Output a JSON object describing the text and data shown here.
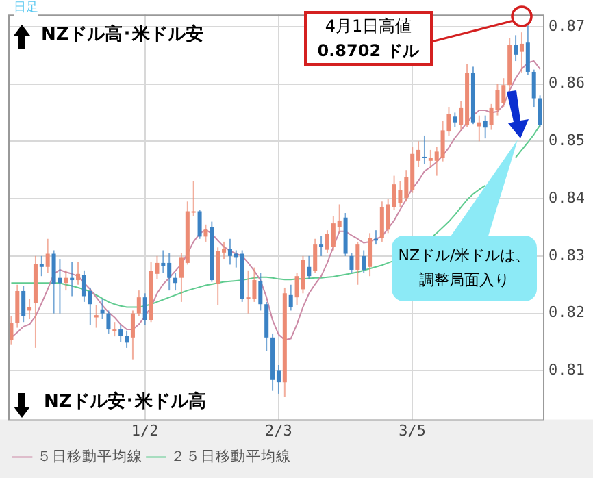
{
  "chart_data": {
    "type": "candlestick",
    "categories": [
      null,
      null,
      null,
      null,
      null,
      null,
      null,
      null,
      null,
      null,
      null,
      null,
      null,
      null,
      null,
      null,
      null,
      null,
      null,
      null,
      null,
      null,
      "1/2",
      null,
      null,
      null,
      null,
      null,
      null,
      null,
      null,
      null,
      null,
      null,
      null,
      null,
      null,
      null,
      null,
      null,
      null,
      null,
      null,
      null,
      "2/3",
      null,
      null,
      null,
      null,
      null,
      null,
      null,
      null,
      null,
      null,
      null,
      null,
      null,
      null,
      null,
      null,
      null,
      null,
      null,
      null,
      null,
      "3/5",
      null,
      null,
      null,
      null,
      null,
      null,
      null,
      null,
      null,
      null,
      null,
      null,
      null,
      null,
      null,
      null,
      null,
      null,
      null,
      null,
      null
    ],
    "ohlc": [
      [
        0.8154,
        0.8195,
        0.8145,
        0.8184
      ],
      [
        0.8184,
        0.825,
        0.8175,
        0.8239
      ],
      [
        0.8239,
        0.8248,
        0.8185,
        0.8195
      ],
      [
        0.8205,
        0.8225,
        0.819,
        0.8211
      ],
      [
        0.8218,
        0.83,
        0.814,
        0.8286
      ],
      [
        0.8286,
        0.83,
        0.8265,
        0.8281
      ],
      [
        0.8281,
        0.833,
        0.827,
        0.8304
      ],
      [
        0.8304,
        0.831,
        0.82,
        0.8251
      ],
      [
        0.8262,
        0.8295,
        0.82,
        0.8253
      ],
      [
        0.8253,
        0.8275,
        0.824,
        0.8262
      ],
      [
        0.8262,
        0.829,
        0.823,
        0.8258
      ],
      [
        0.8258,
        0.829,
        0.825,
        0.8269
      ],
      [
        0.8267,
        0.8275,
        0.822,
        0.823
      ],
      [
        0.8239,
        0.8245,
        0.818,
        0.8216
      ],
      [
        0.8193,
        0.8215,
        0.8175,
        0.8197
      ],
      [
        0.8207,
        0.8225,
        0.819,
        0.82
      ],
      [
        0.82,
        0.8205,
        0.8165,
        0.8172
      ],
      [
        0.817,
        0.8185,
        0.816,
        0.8172
      ],
      [
        0.8172,
        0.818,
        0.815,
        0.8161
      ],
      [
        0.8161,
        0.817,
        0.814,
        0.8149
      ],
      [
        0.8158,
        0.8205,
        0.812,
        0.82
      ],
      [
        0.82,
        0.824,
        0.8195,
        0.8228
      ],
      [
        0.8228,
        0.8235,
        0.818,
        0.8188
      ],
      [
        0.8188,
        0.829,
        0.8185,
        0.8274
      ],
      [
        0.8269,
        0.83,
        0.826,
        0.8288
      ],
      [
        0.8288,
        0.831,
        0.827,
        0.8283
      ],
      [
        0.8288,
        0.8305,
        0.824,
        0.8262
      ],
      [
        0.8262,
        0.827,
        0.824,
        0.8253
      ],
      [
        0.8262,
        0.8305,
        0.822,
        0.8297
      ],
      [
        0.8288,
        0.8395,
        0.8285,
        0.8378
      ],
      [
        0.8376,
        0.843,
        0.837,
        0.8378
      ],
      [
        0.8378,
        0.838,
        0.833,
        0.8334
      ],
      [
        0.8334,
        0.8355,
        0.8325,
        0.8346
      ],
      [
        0.835,
        0.836,
        0.8255,
        0.8258
      ],
      [
        0.8251,
        0.8315,
        0.8215,
        0.8309
      ],
      [
        0.8306,
        0.8325,
        0.8295,
        0.8313
      ],
      [
        0.8313,
        0.833,
        0.8285,
        0.83
      ],
      [
        0.8304,
        0.831,
        0.828,
        0.8297
      ],
      [
        0.8304,
        0.831,
        0.822,
        0.8225
      ],
      [
        0.8225,
        0.8275,
        0.82,
        0.8228
      ],
      [
        0.8225,
        0.828,
        0.822,
        0.8258
      ],
      [
        0.8256,
        0.827,
        0.8205,
        0.8216
      ],
      [
        0.8216,
        0.822,
        0.8135,
        0.8158
      ],
      [
        0.8158,
        0.8165,
        0.8065,
        0.8084
      ],
      [
        0.81,
        0.811,
        0.806,
        0.808
      ],
      [
        0.808,
        0.8245,
        0.8054,
        0.8235
      ],
      [
        0.8232,
        0.825,
        0.8205,
        0.8211
      ],
      [
        0.8228,
        0.827,
        0.8215,
        0.8265
      ],
      [
        0.8242,
        0.83,
        0.8235,
        0.8293
      ],
      [
        0.8281,
        0.83,
        0.826,
        0.8265
      ],
      [
        0.8274,
        0.833,
        0.827,
        0.832
      ],
      [
        0.832,
        0.8335,
        0.83,
        0.8316
      ],
      [
        0.8311,
        0.8345,
        0.8305,
        0.8339
      ],
      [
        0.8316,
        0.837,
        0.831,
        0.8357
      ],
      [
        0.835,
        0.839,
        0.834,
        0.8362
      ],
      [
        0.8367,
        0.8375,
        0.83,
        0.8304
      ],
      [
        0.83,
        0.8305,
        0.827,
        0.8276
      ],
      [
        0.8276,
        0.8325,
        0.825,
        0.832
      ],
      [
        0.83,
        0.831,
        0.827,
        0.8276
      ],
      [
        0.8281,
        0.834,
        0.8265,
        0.8332
      ],
      [
        0.833,
        0.8345,
        0.832,
        0.8327
      ],
      [
        0.8332,
        0.8395,
        0.8325,
        0.8385
      ],
      [
        0.8346,
        0.84,
        0.834,
        0.839
      ],
      [
        0.8385,
        0.844,
        0.838,
        0.8425
      ],
      [
        0.8392,
        0.843,
        0.8385,
        0.8415
      ],
      [
        0.8401,
        0.845,
        0.8395,
        0.8438
      ],
      [
        0.8415,
        0.849,
        0.841,
        0.8478
      ],
      [
        0.8466,
        0.85,
        0.8455,
        0.8485
      ],
      [
        0.8473,
        0.851,
        0.846,
        0.8471
      ],
      [
        0.8466,
        0.8485,
        0.8455,
        0.8471
      ],
      [
        0.8466,
        0.849,
        0.844,
        0.8482
      ],
      [
        0.8471,
        0.8535,
        0.8465,
        0.8519
      ],
      [
        0.8517,
        0.856,
        0.851,
        0.8547
      ],
      [
        0.8543,
        0.855,
        0.8525,
        0.8533
      ],
      [
        0.8529,
        0.857,
        0.852,
        0.8559
      ],
      [
        0.8529,
        0.8635,
        0.8525,
        0.8619
      ],
      [
        0.8619,
        0.863,
        0.853,
        0.8533
      ],
      [
        0.8526,
        0.8545,
        0.85,
        0.8533
      ],
      [
        0.8536,
        0.8545,
        0.8505,
        0.8524
      ],
      [
        0.8529,
        0.8565,
        0.852,
        0.8559
      ],
      [
        0.8554,
        0.86,
        0.8545,
        0.8589
      ],
      [
        0.8566,
        0.861,
        0.856,
        0.8598
      ],
      [
        0.8598,
        0.868,
        0.859,
        0.8668
      ],
      [
        0.8668,
        0.8685,
        0.864,
        0.8651
      ],
      [
        0.8656,
        0.869,
        0.862,
        0.867
      ],
      [
        0.8672,
        0.8702,
        0.8615,
        0.8621
      ],
      [
        0.8621,
        0.8625,
        0.856,
        0.8575
      ],
      [
        0.8575,
        0.858,
        0.8525,
        0.8529
      ]
    ],
    "colors": [
      "#ec8b74",
      "#ec8b74",
      "#3b82c4",
      "#ec8b74",
      "#ec8b74",
      "#3b82c4",
      "#ec8b74",
      "#3b82c4",
      "#3b82c4",
      "#ec8b74",
      "#3b82c4",
      "#ec8b74",
      "#3b82c4",
      "#3b82c4",
      "#ec8b74",
      "#3b82c4",
      "#3b82c4",
      "#ec8b74",
      "#3b82c4",
      "#3b82c4",
      "#ec8b74",
      "#ec8b74",
      "#3b82c4",
      "#ec8b74",
      "#ec8b74",
      "#3b82c4",
      "#3b82c4",
      "#3b82c4",
      "#ec8b74",
      "#ec8b74",
      "#ec8b74",
      "#3b82c4",
      "#ec8b74",
      "#3b82c4",
      "#ec8b74",
      "#ec8b74",
      "#3b82c4",
      "#3b82c4",
      "#3b82c4",
      "#ec8b74",
      "#ec8b74",
      "#3b82c4",
      "#3b82c4",
      "#3b82c4",
      "#3b82c4",
      "#ec8b74",
      "#3b82c4",
      "#ec8b74",
      "#ec8b74",
      "#3b82c4",
      "#ec8b74",
      "#3b82c4",
      "#ec8b74",
      "#ec8b74",
      "#ec8b74",
      "#3b82c4",
      "#3b82c4",
      "#ec8b74",
      "#3b82c4",
      "#ec8b74",
      "#3b82c4",
      "#ec8b74",
      "#ec8b74",
      "#ec8b74",
      "#ec8b74",
      "#ec8b74",
      "#ec8b74",
      "#ec8b74",
      "#3b82c4",
      "#ec8b74",
      "#ec8b74",
      "#ec8b74",
      "#ec8b74",
      "#3b82c4",
      "#ec8b74",
      "#ec8b74",
      "#3b82c4",
      "#ec8b74",
      "#3b82c4",
      "#ec8b74",
      "#ec8b74",
      "#ec8b74",
      "#ec8b74",
      "#3b82c4",
      "#ec8b74",
      "#3b82c4",
      "#3b82c4",
      "#3b82c4"
    ],
    "series": [
      {
        "name": "５日移動平均線",
        "type": "line",
        "color": "#cc8aa6",
        "values": [
          0.8158,
          0.8167,
          0.8177,
          0.8181,
          0.8195,
          0.8218,
          0.8242,
          0.8269,
          0.8276,
          0.8272,
          0.8269,
          0.8265,
          0.8253,
          0.8242,
          0.8228,
          0.8214,
          0.8202,
          0.8193,
          0.8181,
          0.8172,
          0.8172,
          0.8181,
          0.8195,
          0.8211,
          0.8235,
          0.8251,
          0.8262,
          0.8274,
          0.8286,
          0.8304,
          0.8325,
          0.8339,
          0.8346,
          0.8339,
          0.8327,
          0.8316,
          0.8309,
          0.8304,
          0.83,
          0.8288,
          0.8274,
          0.8258,
          0.8228,
          0.8188,
          0.8163,
          0.8154,
          0.8156,
          0.8181,
          0.8211,
          0.8235,
          0.8251,
          0.8265,
          0.8288,
          0.8316,
          0.8343,
          0.8343,
          0.8336,
          0.833,
          0.8323,
          0.8325,
          0.833,
          0.8334,
          0.8348,
          0.8362,
          0.8381,
          0.8399,
          0.8418,
          0.8431,
          0.8448,
          0.8455,
          0.8464,
          0.8475,
          0.8489,
          0.8506,
          0.8519,
          0.8533,
          0.8545,
          0.8554,
          0.8554,
          0.855,
          0.8552,
          0.8563,
          0.8589,
          0.861,
          0.8626,
          0.8637,
          0.864,
          0.8626
        ]
      },
      {
        "name": "２５日移動平均線",
        "type": "line",
        "color": "#5fcb8f",
        "values": [
          0.8253,
          0.8253,
          0.8253,
          0.8253,
          0.8253,
          0.8253,
          0.8253,
          0.8253,
          0.8253,
          0.825,
          0.8248,
          0.8245,
          0.8242,
          0.8238,
          0.8232,
          0.8226,
          0.822,
          0.8216,
          0.8213,
          0.8211,
          0.8211,
          0.8211,
          0.8213,
          0.8216,
          0.822,
          0.8224,
          0.8228,
          0.8232,
          0.8236,
          0.824,
          0.8243,
          0.8246,
          0.8249,
          0.8251,
          0.8253,
          0.8255,
          0.8256,
          0.8257,
          0.8258,
          0.826,
          0.8262,
          0.8263,
          0.8263,
          0.8262,
          0.826,
          0.8259,
          0.8259,
          0.826,
          0.826,
          0.8261,
          0.8262,
          0.8262,
          0.8263,
          0.8264,
          0.8266,
          0.8268,
          0.827,
          0.8272,
          0.8275,
          0.8278,
          0.8281,
          0.8284,
          0.8288,
          0.8292,
          null,
          null,
          null,
          null,
          null,
          0.8331,
          0.834,
          0.835,
          0.836,
          0.8372,
          0.8385,
          0.8398,
          0.8408,
          0.8416,
          0.8423,
          null,
          null,
          null,
          null,
          0.8472,
          0.8485,
          0.8498,
          0.8512,
          0.8528
        ]
      }
    ],
    "ylim": [
      0.8015,
      0.8721
    ],
    "yticks": [
      0.81,
      0.82,
      0.83,
      0.84,
      0.85,
      0.86,
      0.87
    ],
    "grid": true,
    "legend": "bottom",
    "annotations": [
      "日足",
      "NZドル高･米ドル安",
      "NZドル安･米ドル高",
      "4月1日高値\n0.8702 ドル",
      "NZドル/米ドルは、調整局面入り"
    ]
  }
}
